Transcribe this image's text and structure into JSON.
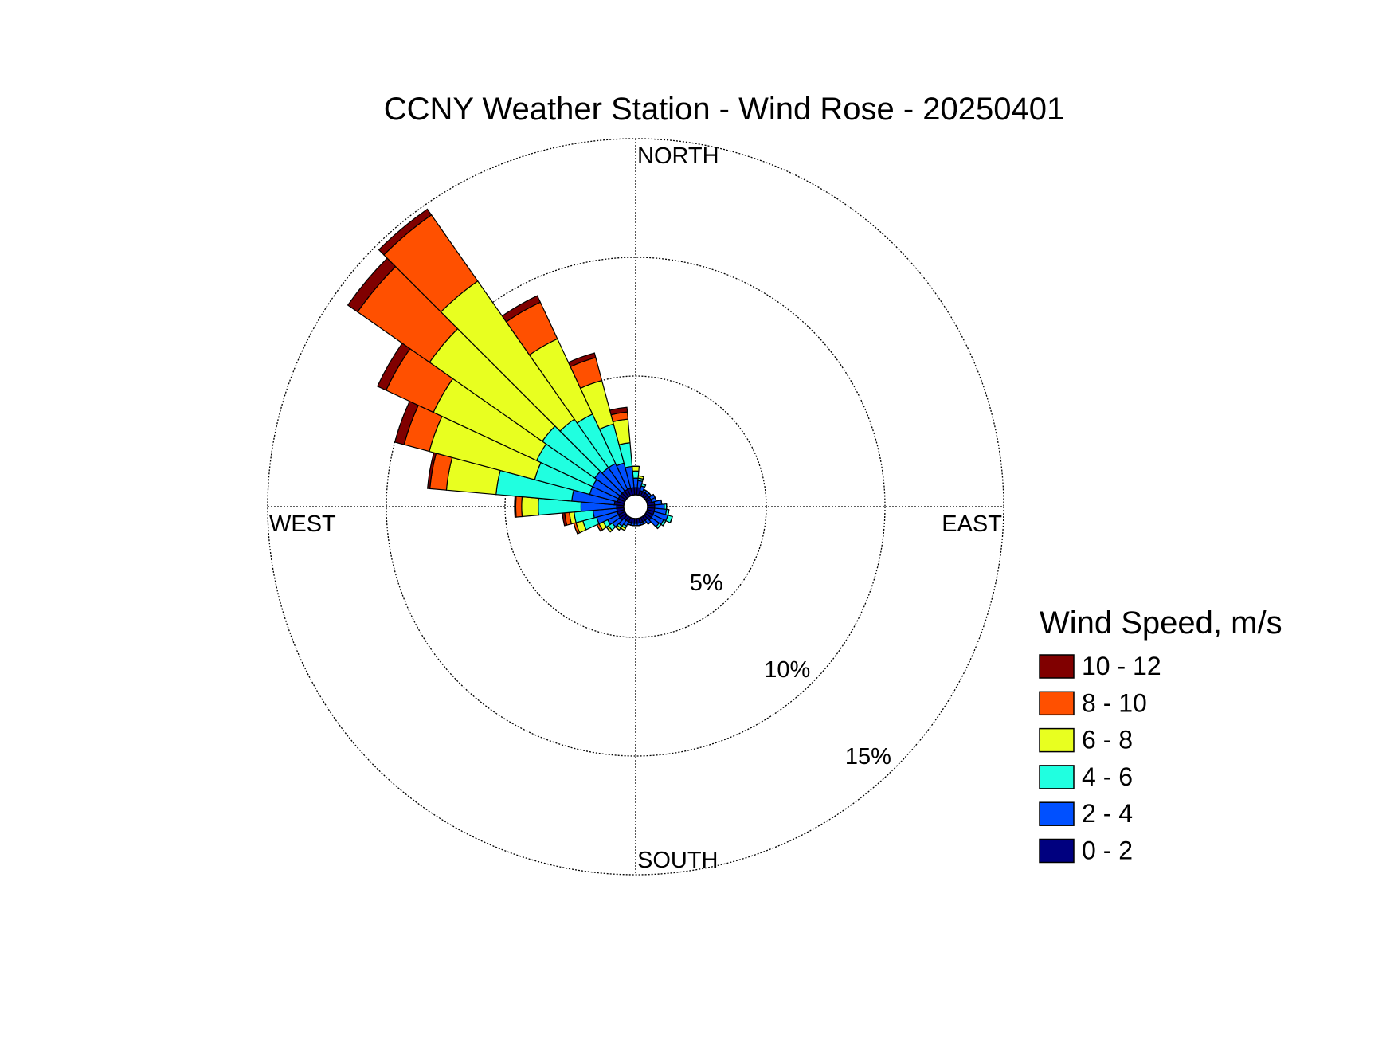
{
  "chart_data": {
    "type": "windrose",
    "title": "CCNY Weather Station - Wind Rose - 20250401",
    "legend_title": "Wind Speed, m/s",
    "direction_labels": [
      "NORTH",
      "EAST",
      "SOUTH",
      "WEST"
    ],
    "categories": [
      null,
      null,
      null,
      null,
      null,
      null,
      null,
      null,
      null,
      null,
      null,
      null,
      null,
      null,
      null,
      null,
      null,
      null,
      null,
      null,
      null,
      null,
      null,
      null,
      null,
      null,
      null,
      null,
      null,
      null,
      null,
      null,
      null,
      null,
      null,
      null
    ],
    "rlim": [
      0,
      15
    ],
    "rticks": [
      {
        "value": 5,
        "label": "5%"
      },
      {
        "value": 10,
        "label": "10%"
      },
      {
        "value": 15,
        "label": "15%"
      }
    ],
    "series": [
      {
        "name": "0 - 2",
        "color": "#00007f",
        "values": [
          0.3,
          0.3,
          0.2,
          0.2,
          0.2,
          0.2,
          0.2,
          0.2,
          0.3,
          0.3,
          0.3,
          0.3,
          0.3,
          0.3,
          0.2,
          0.2,
          0.2,
          0.2,
          0.2,
          0.2,
          0.2,
          0.2,
          0.2,
          0.3,
          0.3,
          0.3,
          0.3,
          0.3,
          0.4,
          0.3,
          0.3,
          0.3,
          0.3,
          0.3,
          0.3,
          0.3
        ]
      },
      {
        "name": "2 - 4",
        "color": "#0050ff",
        "values": [
          0.4,
          0.3,
          0.2,
          0.1,
          0.1,
          0.1,
          0.2,
          0.2,
          0.3,
          0.4,
          0.5,
          0.6,
          0.5,
          0.4,
          0.2,
          0.1,
          0.1,
          0.1,
          0.1,
          0.1,
          0.1,
          0.2,
          0.3,
          0.4,
          0.5,
          0.9,
          1.0,
          1.5,
          1.8,
          1.2,
          1.2,
          1.3,
          1.2,
          1.2,
          1.1,
          0.9
        ]
      },
      {
        "name": "4 - 6",
        "color": "#20ffe0",
        "values": [
          0.3,
          0.1,
          0.1,
          0,
          0,
          0,
          0,
          0,
          0,
          0.1,
          0.1,
          0.2,
          0.1,
          0.1,
          0,
          0,
          0,
          0,
          0,
          0,
          0,
          0.1,
          0.1,
          0.2,
          0.2,
          0.6,
          0.8,
          1.8,
          3.2,
          2.4,
          2.6,
          2.7,
          2.5,
          2.3,
          1.7,
          1.0
        ]
      },
      {
        "name": "6 - 8",
        "color": "#e8ff20",
        "values": [
          0.2,
          0.1,
          0,
          0,
          0,
          0,
          0,
          0,
          0,
          0,
          0,
          0,
          0,
          0,
          0,
          0,
          0,
          0,
          0,
          0,
          0,
          0.1,
          0.1,
          0.1,
          0.2,
          0.3,
          0.2,
          0.7,
          2.1,
          4.6,
          4.8,
          5.8,
          7.1,
          3.5,
          1.9,
          1.0
        ]
      },
      {
        "name": "8 - 10",
        "color": "#ff5000",
        "values": [
          0,
          0,
          0,
          0,
          0,
          0,
          0,
          0,
          0,
          0,
          0,
          0,
          0,
          0,
          0,
          0,
          0,
          0,
          0,
          0,
          0,
          0,
          0,
          0,
          0.1,
          0.1,
          0.2,
          0.25,
          0.7,
          1.1,
          2.2,
          3.7,
          3.4,
          1.7,
          1.0,
          0.3
        ]
      },
      {
        "name": "10 - 12",
        "color": "#800000",
        "values": [
          0,
          0,
          0,
          0,
          0,
          0,
          0,
          0,
          0,
          0,
          0,
          0,
          0,
          0,
          0,
          0,
          0,
          0,
          0,
          0,
          0,
          0,
          0,
          0,
          0,
          0,
          0.1,
          0.05,
          0.1,
          0.4,
          0.4,
          0.5,
          0.3,
          0.3,
          0.2,
          0.2
        ]
      }
    ]
  }
}
